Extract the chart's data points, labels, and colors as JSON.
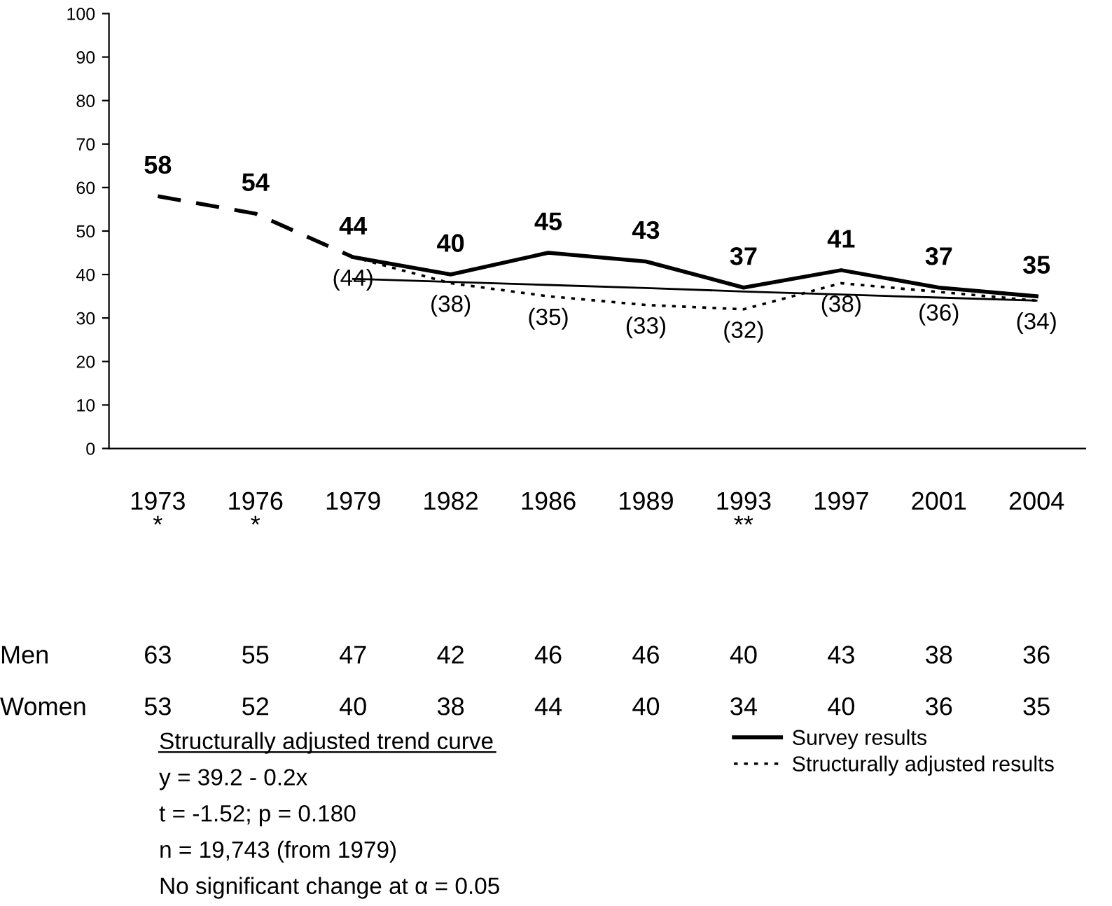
{
  "chart_data": {
    "type": "line",
    "categories": [
      "1973\n*",
      "1976\n*",
      "1979",
      "1982",
      "1986",
      "1989",
      "1993\n**",
      "1997",
      "2001",
      "2004"
    ],
    "series": [
      {
        "color": "#000000",
        "line_style": "dashed",
        "values": [
          58,
          54,
          44,
          null,
          null,
          null,
          null,
          null,
          null,
          null
        ],
        "value_labels": [
          "58",
          "54",
          null,
          null,
          null,
          null,
          null,
          null,
          null,
          null
        ]
      },
      {
        "name": "Survey results",
        "color": "#000000",
        "line_style": "solid",
        "values": [
          null,
          null,
          44,
          40,
          45,
          43,
          37,
          41,
          37,
          35
        ],
        "value_labels": [
          null,
          null,
          "44",
          "40",
          "45",
          "43",
          "37",
          "41",
          "37",
          "35"
        ]
      },
      {
        "name": "Structurally adjusted results",
        "color": "#000000",
        "line_style": "dotted",
        "values": [
          null,
          null,
          44,
          38,
          35,
          33,
          32,
          38,
          36,
          34
        ],
        "value_labels": [
          null,
          null,
          "(44)",
          "(38)",
          "(35)",
          "(33)",
          "(32)",
          "(38)",
          "(36)",
          "(34)"
        ]
      },
      {
        "color": "#000000",
        "line_style": "solid",
        "values": [
          null,
          null,
          39,
          38.3,
          37.6,
          36.9,
          36.1,
          35.4,
          34.7,
          34
        ]
      }
    ],
    "ylim": [
      0,
      100
    ],
    "yticks": [
      0,
      10,
      20,
      30,
      40,
      50,
      60,
      70,
      80,
      90,
      100
    ],
    "grid": false,
    "legend": "bottom right",
    "marker": "none",
    "annotations": [
      "Men 63 55 47 42 46 46 40 43 38 36",
      "Women 53 52 40 38 44 40 34 40 36 35",
      "Structurally adjusted trend curve",
      "y = 39.2 - 0.2x",
      "t = -1.52; p = 0.180",
      "n = 19,743 (from 1979)",
      "No significant change at α = 0.05"
    ]
  }
}
